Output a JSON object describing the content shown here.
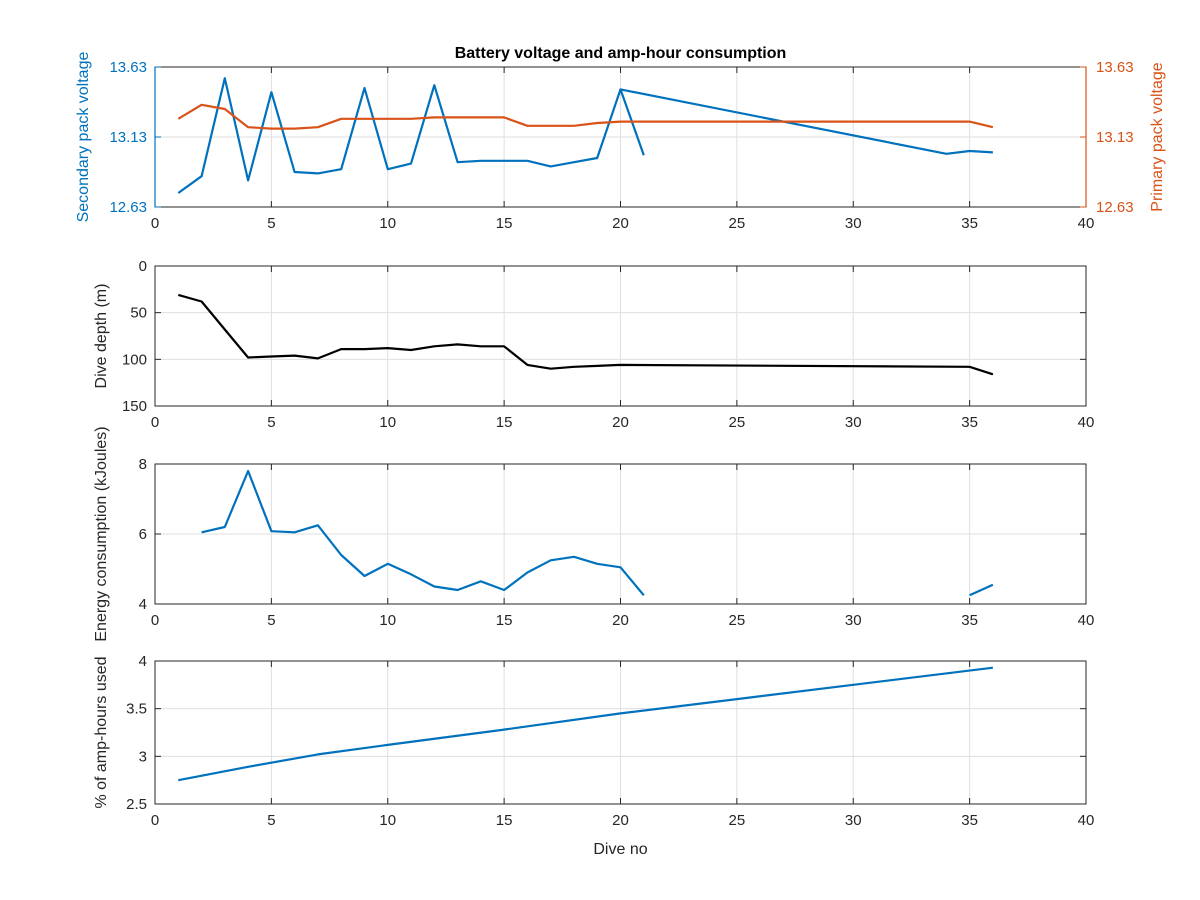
{
  "colors": {
    "blue": "#0072BD",
    "orange": "#D95319",
    "black": "#000000",
    "grid": "#DFDFDF",
    "axis": "#262626"
  },
  "chart_data": [
    {
      "type": "line",
      "title": "Battery voltage and amp-hour consumption",
      "xlabel": "",
      "ylabel": "Secondary pack voltage",
      "ylabel_right": "Primary pack voltage",
      "xlim": [
        0,
        40
      ],
      "ylim": [
        12.63,
        13.63
      ],
      "ylim_right": [
        12.63,
        13.63
      ],
      "xticks": [
        "0",
        "5",
        "10",
        "15",
        "20",
        "25",
        "30",
        "35",
        "40"
      ],
      "yticks": [
        "12.63",
        "13.13",
        "13.63"
      ],
      "yticks_right": [
        "12.63",
        "13.13",
        "13.63"
      ],
      "grid": true,
      "series": [
        {
          "axis": "left",
          "color": "#0072BD",
          "x": [
            1,
            2,
            3,
            4,
            5,
            6,
            7,
            8,
            9,
            10,
            11,
            12,
            13,
            14,
            15,
            16,
            17,
            18,
            19,
            20,
            21
          ],
          "y": [
            12.73,
            12.85,
            13.55,
            12.82,
            13.45,
            12.88,
            12.87,
            12.9,
            13.48,
            12.9,
            12.94,
            13.5,
            12.95,
            12.96,
            12.96,
            12.96,
            12.92,
            12.95,
            12.98,
            13.47,
            13.0
          ]
        },
        {
          "axis": "left",
          "color": "#0072BD",
          "x": [
            20,
            34,
            35,
            36
          ],
          "y": [
            13.47,
            13.01,
            13.03,
            13.02
          ]
        },
        {
          "axis": "right",
          "color": "#D95319",
          "x": [
            1,
            2,
            3,
            4,
            5,
            6,
            7,
            8,
            9,
            10,
            11,
            12,
            13,
            14,
            15,
            16,
            17,
            18,
            19,
            20,
            21,
            35,
            36
          ],
          "y": [
            13.26,
            13.36,
            13.33,
            13.2,
            13.19,
            13.19,
            13.2,
            13.26,
            13.26,
            13.26,
            13.26,
            13.27,
            13.27,
            13.27,
            13.27,
            13.21,
            13.21,
            13.21,
            13.23,
            13.24,
            13.24,
            13.24,
            13.2
          ]
        }
      ]
    },
    {
      "type": "line",
      "title": "",
      "xlabel": "",
      "ylabel": "Dive depth (m)",
      "xlim": [
        0,
        40
      ],
      "ylim": [
        0,
        150
      ],
      "y_reversed": true,
      "xticks": [
        "0",
        "5",
        "10",
        "15",
        "20",
        "25",
        "30",
        "35",
        "40"
      ],
      "yticks": [
        "0",
        "50",
        "100",
        "150"
      ],
      "grid": true,
      "series": [
        {
          "color": "#000000",
          "x": [
            1,
            2,
            3,
            4,
            5,
            6,
            7,
            8,
            9,
            10,
            11,
            12,
            13,
            14,
            15,
            16,
            17,
            18,
            19,
            20,
            35,
            36
          ],
          "y": [
            31,
            38,
            68,
            98,
            97,
            96,
            99,
            89,
            89,
            88,
            90,
            86,
            84,
            86,
            86,
            106,
            110,
            108,
            107,
            106,
            108,
            116
          ]
        }
      ]
    },
    {
      "type": "line",
      "title": "",
      "xlabel": "",
      "ylabel": "Energy consumption (kJoules)",
      "xlim": [
        0,
        40
      ],
      "ylim": [
        4,
        8
      ],
      "xticks": [
        "0",
        "5",
        "10",
        "15",
        "20",
        "25",
        "30",
        "35",
        "40"
      ],
      "yticks": [
        "4",
        "6",
        "8"
      ],
      "grid": true,
      "series": [
        {
          "color": "#0072BD",
          "x": [
            2,
            3,
            4,
            5,
            6,
            7,
            8,
            9,
            10,
            11,
            12,
            13,
            14,
            15,
            16,
            17,
            18,
            19,
            20,
            21
          ],
          "y": [
            6.05,
            6.2,
            7.8,
            6.08,
            6.05,
            6.25,
            5.4,
            4.8,
            5.15,
            4.85,
            4.5,
            4.4,
            4.65,
            4.4,
            4.9,
            5.25,
            5.35,
            5.15,
            5.05,
            4.25
          ]
        },
        {
          "color": "#0072BD",
          "x": [
            35,
            36
          ],
          "y": [
            4.25,
            4.55
          ]
        }
      ]
    },
    {
      "type": "line",
      "title": "",
      "xlabel": "Dive no",
      "ylabel": "% of amp-hours used",
      "xlim": [
        0,
        40
      ],
      "ylim": [
        2.5,
        4
      ],
      "xticks": [
        "0",
        "5",
        "10",
        "15",
        "20",
        "25",
        "30",
        "35",
        "40"
      ],
      "yticks": [
        "2.5",
        "3",
        "3.5",
        "4"
      ],
      "grid": true,
      "series": [
        {
          "color": "#0072BD",
          "x": [
            1,
            4,
            7,
            10,
            15,
            20,
            25,
            30,
            36
          ],
          "y": [
            2.75,
            2.89,
            3.02,
            3.12,
            3.28,
            3.45,
            3.6,
            3.75,
            3.93
          ]
        }
      ]
    }
  ]
}
